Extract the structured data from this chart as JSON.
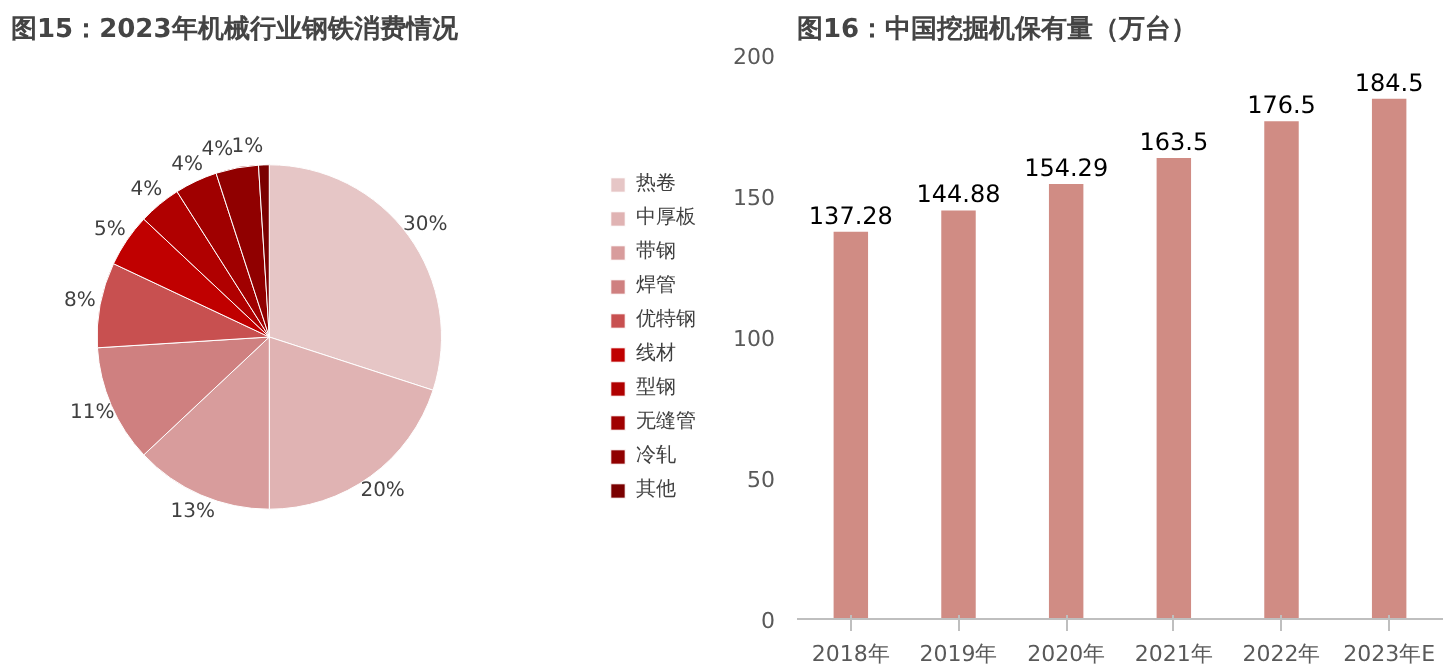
{
  "chart_data": [
    {
      "type": "pie",
      "title": "图15：2023年机械行业钢铁消费情况",
      "categories": [
        "热卷",
        "中厚板",
        "带钢",
        "焊管",
        "优特钢",
        "线材",
        "型钢",
        "无缝管",
        "冷轧",
        "其他"
      ],
      "values": [
        30,
        20,
        13,
        11,
        8,
        5,
        4,
        4,
        4,
        1
      ],
      "value_labels": [
        "30%",
        "20%",
        "13%",
        "11%",
        "8%",
        "5%",
        "4%",
        "4%",
        "4%",
        "1%"
      ],
      "colors": [
        "#e6c6c6",
        "#e0b3b3",
        "#d89c9c",
        "#cf8080",
        "#c85050",
        "#c00000",
        "#b00000",
        "#a00000",
        "#900000",
        "#7a0000"
      ],
      "legend": "right"
    },
    {
      "type": "bar",
      "title": "图16：中国挖掘机保有量（万台）",
      "categories": [
        "2018年",
        "2019年",
        "2020年",
        "2021年",
        "2022年",
        "2023年E"
      ],
      "values": [
        137.28,
        144.88,
        154.29,
        163.5,
        176.5,
        184.5
      ],
      "color": "#d08c84",
      "ylim": [
        0,
        200
      ],
      "yticks": [
        0,
        50,
        100,
        150,
        200
      ],
      "data_labels": true,
      "grid": false
    }
  ]
}
